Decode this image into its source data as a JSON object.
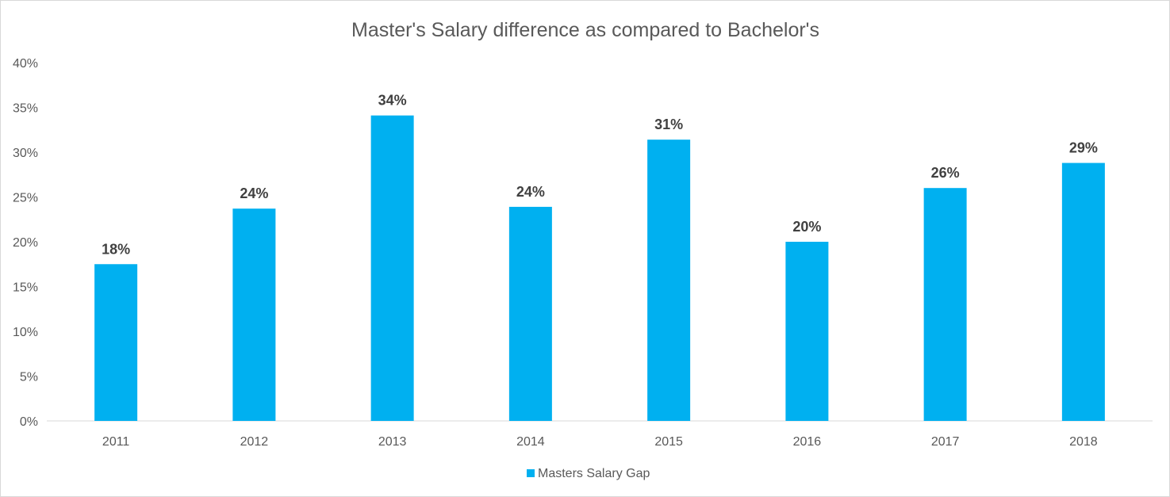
{
  "chart_data": {
    "type": "bar",
    "title": "Master's Salary difference as compared to Bachelor's",
    "xlabel": "",
    "ylabel": "",
    "categories": [
      "2011",
      "2012",
      "2013",
      "2014",
      "2015",
      "2016",
      "2017",
      "2018"
    ],
    "series": [
      {
        "name": "Masters Salary Gap",
        "values": [
          17.5,
          23.7,
          34.1,
          23.9,
          31.4,
          20.0,
          26.0,
          28.8
        ],
        "data_labels": [
          "18%",
          "24%",
          "34%",
          "24%",
          "31%",
          "20%",
          "26%",
          "29%"
        ],
        "color": "#00b0f0"
      }
    ],
    "ylim": [
      0,
      40
    ],
    "y_ticks": [
      "0%",
      "5%",
      "10%",
      "15%",
      "20%",
      "25%",
      "30%",
      "35%",
      "40%"
    ],
    "grid": false,
    "legend_position": "bottom"
  }
}
